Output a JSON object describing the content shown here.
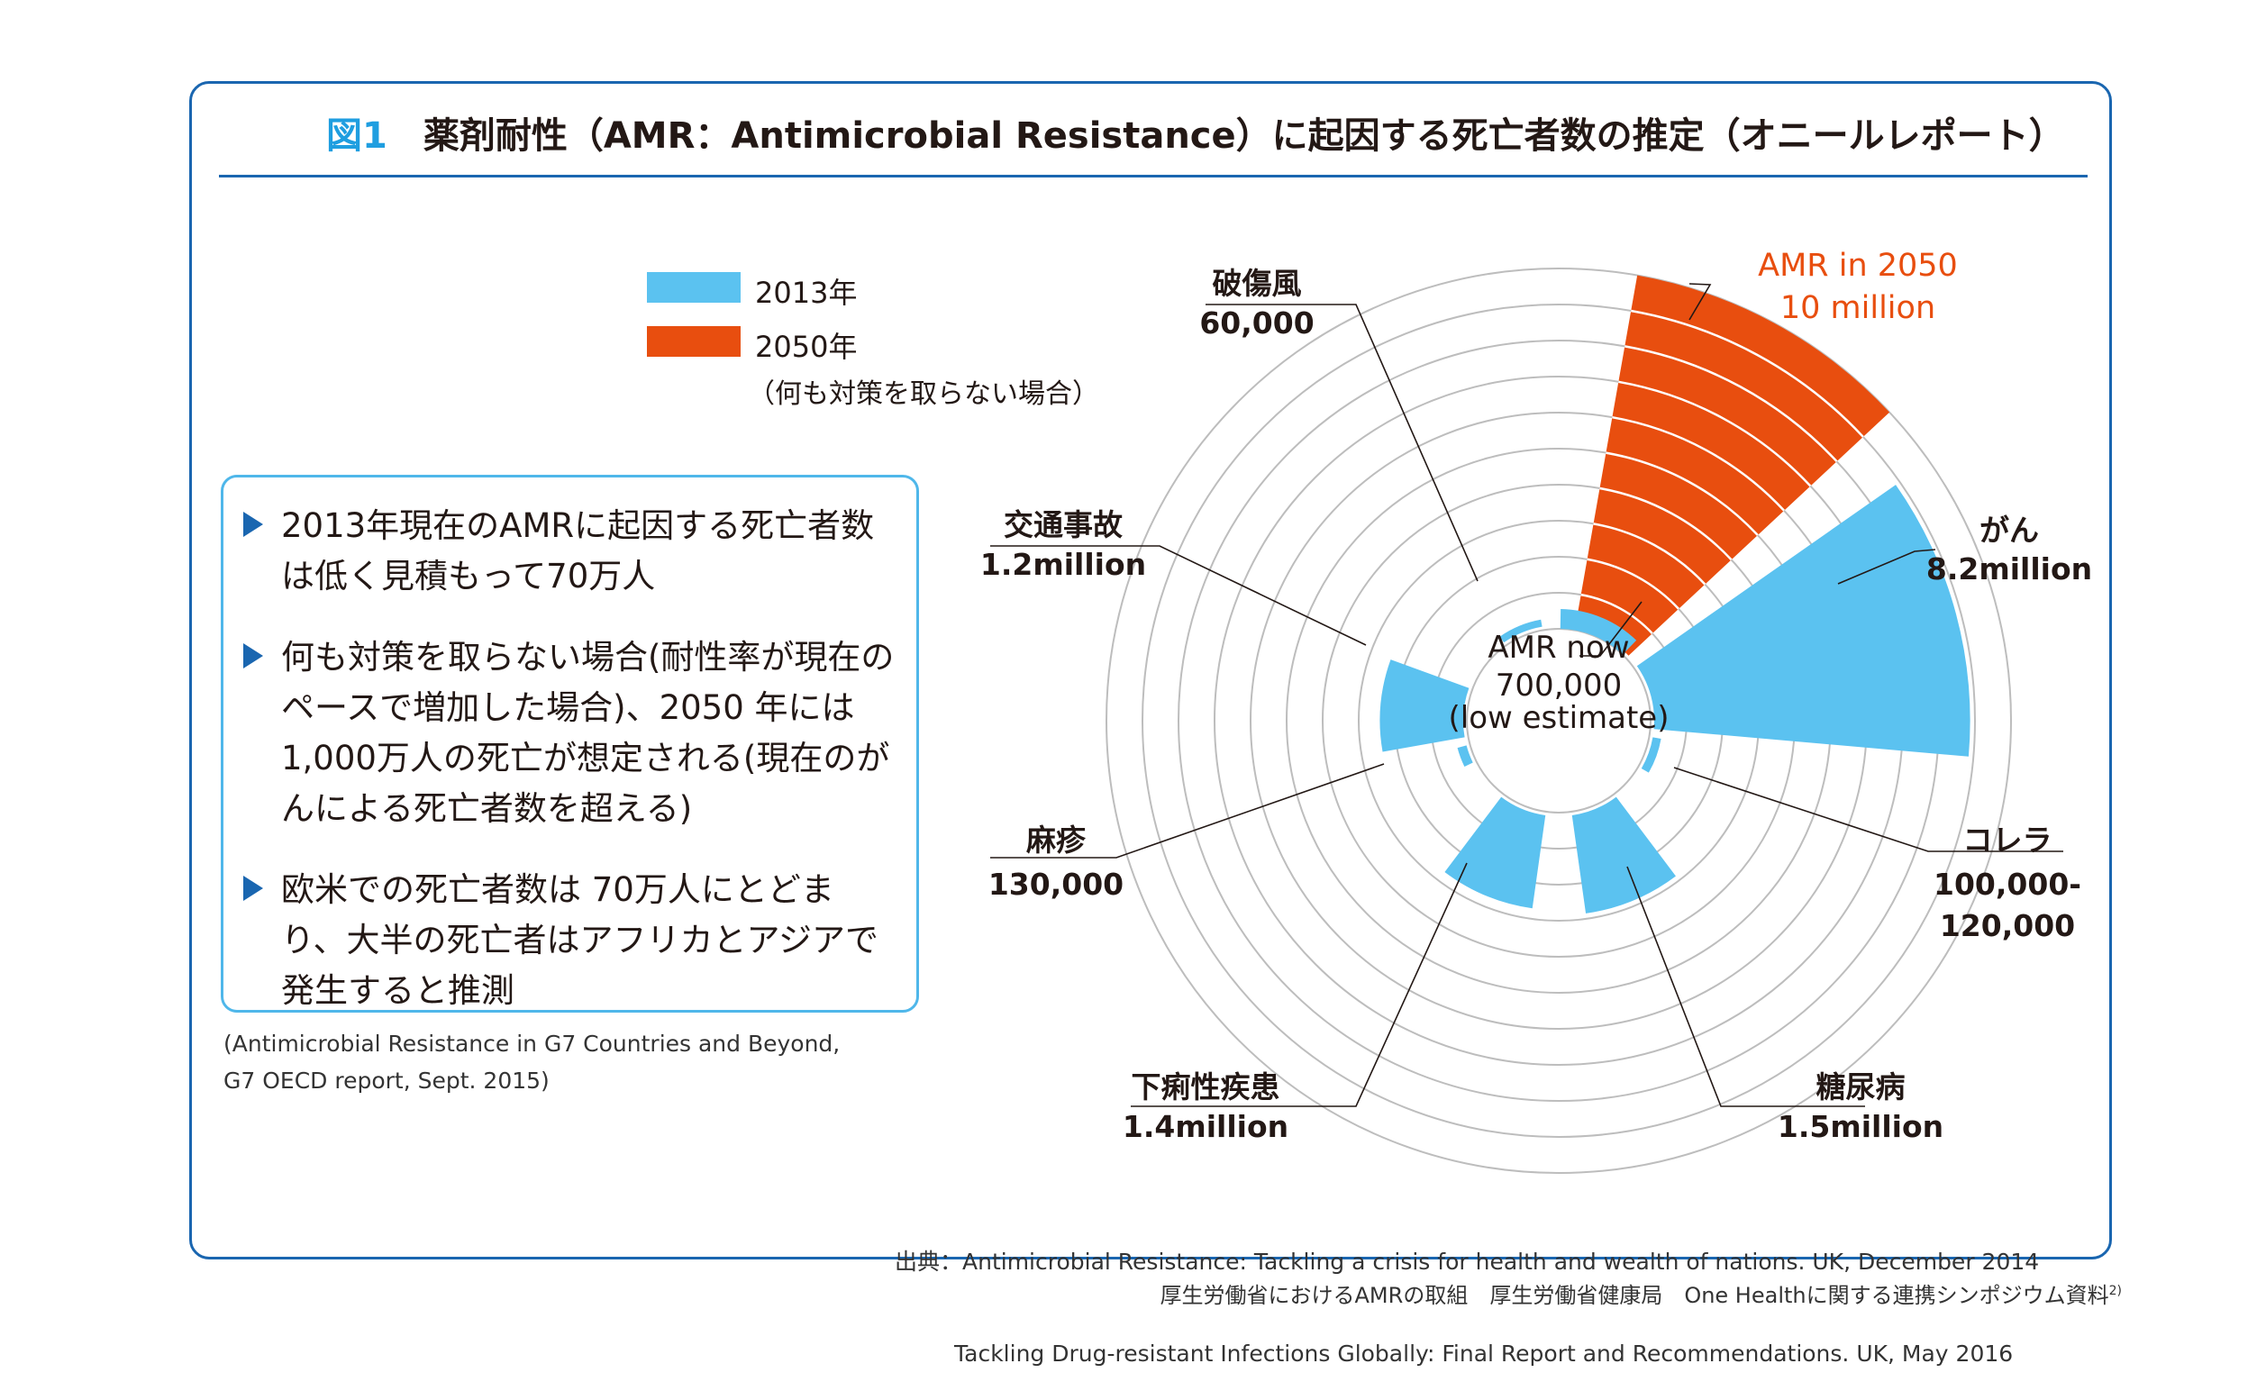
{
  "title": {
    "figure_label": "図1",
    "text": "薬剤耐性（AMR：Antimicrobial Resistance）に起因する死亡者数の推定（オニールレポート）"
  },
  "legend": [
    {
      "label": "2013年",
      "color": "#5bc2f0"
    },
    {
      "label": "2050年",
      "sub": "（何も対策を取らない場合）",
      "color": "#e84e0f"
    }
  ],
  "summary": [
    "2013年現在のAMRに起因する死亡者数は低く見積もって70万人",
    "何も対策を取らない場合(耐性率が現在のペースで増加した場合)、2050 年には 1,000万人の死亡が想定される(現在のがんによる死亡者数を超える)",
    "欧米での死亡者数は 70万人にとどまり、大半の死亡者はアフリカとアジアで発生すると推測"
  ],
  "oecd_note": [
    "(Antimicrobial Resistance in G7 Countries and Beyond,",
    " G7 OECD report, Sept. 2015)"
  ],
  "source": [
    "出典：Antimicrobial Resistance: Tackling a crisis for health and wealth of nations. UK, December 2014",
    "Tackling Drug-resistant Infections Globally: Final Report and Recommendations. UK, May 2016"
  ],
  "footer": {
    "text": "厚生労働省におけるAMRの取組　厚生労働省健康局　One Healthに関する連携シンポジウム資料",
    "sup": "2)"
  },
  "chart_data": {
    "type": "polar-area",
    "center_label": [
      "AMR now",
      "700,000",
      "(low estimate)"
    ],
    "rings": 10,
    "series": [
      {
        "name": "2013年",
        "color": "#5bc2f0"
      },
      {
        "name": "2050年",
        "color": "#e84e0f"
      }
    ],
    "categories": [
      {
        "name": "AMR in 2050",
        "value_label": "10 million",
        "value": 10000000,
        "series": "2050年"
      },
      {
        "name": "がん",
        "value_label": "8.2million",
        "value": 8200000,
        "series": "2013年"
      },
      {
        "name": "コレラ",
        "value_label": "100,000-\n120,000",
        "value": 120000,
        "series": "2013年"
      },
      {
        "name": "糖尿病",
        "value_label": "1.5million",
        "value": 1500000,
        "series": "2013年"
      },
      {
        "name": "下痢性疾患",
        "value_label": "1.4million",
        "value": 1400000,
        "series": "2013年"
      },
      {
        "name": "麻疹",
        "value_label": "130,000",
        "value": 130000,
        "series": "2013年"
      },
      {
        "name": "交通事故",
        "value_label": "1.2million",
        "value": 1200000,
        "series": "2013年"
      },
      {
        "name": "破傷風",
        "value_label": "60,000",
        "value": 60000,
        "series": "2013年"
      },
      {
        "name": "AMR now",
        "value_label": "700,000",
        "value": 700000,
        "series": "2013年"
      }
    ]
  }
}
